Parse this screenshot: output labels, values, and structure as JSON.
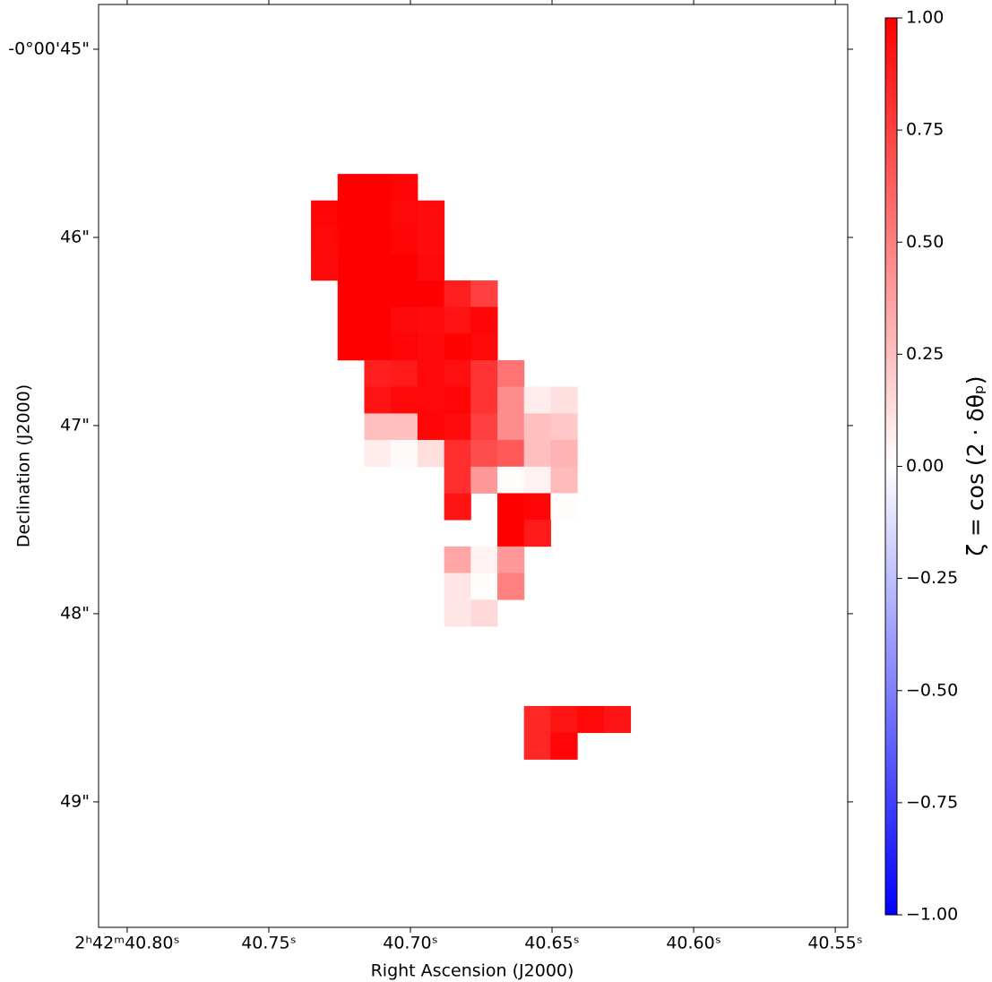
{
  "chart_data": {
    "type": "heatmap",
    "xlabel": "Right Ascension (J2000)",
    "ylabel": "Declination (J2000)",
    "colorbar_label": "ζ = cos (2 · δθₚ)",
    "colormap": [
      "#0000ff",
      "#ffffff",
      "#ff0000"
    ],
    "clim": [
      -1,
      1
    ],
    "cticks": [
      {
        "value": -1,
        "label": "−1.00"
      },
      {
        "value": -0.75,
        "label": "−0.75"
      },
      {
        "value": -0.5,
        "label": "−0.50"
      },
      {
        "value": -0.25,
        "label": "−0.25"
      },
      {
        "value": 0,
        "label": "0.00"
      },
      {
        "value": 0.25,
        "label": "0.25"
      },
      {
        "value": 0.5,
        "label": "0.50"
      },
      {
        "value": 0.75,
        "label": "0.75"
      },
      {
        "value": 1,
        "label": "1.00"
      }
    ],
    "xlim": [
      40.8101,
      40.5456
    ],
    "ylim": [
      49.667,
      44.762
    ],
    "xticks": [
      {
        "value": 40.8,
        "label": "2ʰ42ᵐ40.80ˢ"
      },
      {
        "value": 40.75,
        "label": "40.75ˢ"
      },
      {
        "value": 40.7,
        "label": "40.70ˢ"
      },
      {
        "value": 40.65,
        "label": "40.65ˢ"
      },
      {
        "value": 40.6,
        "label": "40.60ˢ"
      },
      {
        "value": 40.55,
        "label": "40.55ˢ"
      }
    ],
    "yticks": [
      {
        "value": 45,
        "label": "-0°00'45\""
      },
      {
        "value": 46,
        "label": "46\""
      },
      {
        "value": 47,
        "label": "47\""
      },
      {
        "value": 48,
        "label": "48\""
      },
      {
        "value": 49,
        "label": "49\""
      }
    ],
    "x": [
      40.7304,
      40.721,
      40.7116,
      40.7022,
      40.6928,
      40.6834,
      40.674,
      40.6646,
      40.6552,
      40.6458,
      40.6364,
      40.627
    ],
    "y": [
      45.733,
      45.874,
      46.016,
      46.157,
      46.299,
      46.44,
      46.581,
      46.723,
      46.864,
      47.006,
      47.147,
      47.289,
      47.43,
      47.571,
      47.713,
      47.854,
      47.996,
      48.137,
      48.279,
      48.42,
      48.561,
      48.703
    ],
    "z": [
      [
        null,
        1,
        1,
        0.98,
        null,
        null,
        null,
        null,
        null,
        null,
        null,
        null
      ],
      [
        0.98,
        1,
        1,
        0.97,
        0.95,
        null,
        null,
        null,
        null,
        null,
        null,
        null
      ],
      [
        0.97,
        1,
        1,
        0.98,
        0.95,
        null,
        null,
        null,
        null,
        null,
        null,
        null
      ],
      [
        0.96,
        1,
        1,
        1,
        0.96,
        null,
        null,
        null,
        null,
        null,
        null,
        null
      ],
      [
        null,
        1,
        1,
        1,
        1,
        0.88,
        0.75,
        null,
        null,
        null,
        null,
        null
      ],
      [
        null,
        1,
        1,
        0.96,
        0.95,
        0.93,
        0.98,
        null,
        null,
        null,
        null,
        null
      ],
      [
        null,
        1,
        1,
        0.98,
        0.96,
        0.99,
        0.97,
        null,
        null,
        null,
        null,
        null
      ],
      [
        null,
        null,
        0.88,
        0.9,
        0.97,
        0.94,
        0.8,
        0.55,
        null,
        null,
        null,
        null
      ],
      [
        null,
        null,
        0.93,
        0.97,
        0.97,
        0.98,
        0.8,
        0.45,
        0.08,
        0.12,
        null,
        null
      ],
      [
        null,
        null,
        0.25,
        0.25,
        0.98,
        0.95,
        0.75,
        0.45,
        0.25,
        0.22,
        null,
        null
      ],
      [
        null,
        null,
        0.07,
        0.02,
        0.13,
        0.82,
        0.7,
        0.65,
        0.25,
        0.3,
        null,
        null
      ],
      [
        null,
        null,
        null,
        null,
        null,
        0.82,
        0.4,
        0.01,
        0.05,
        0.27,
        null,
        null
      ],
      [
        null,
        null,
        null,
        null,
        null,
        0.92,
        null,
        1,
        0.98,
        0.01,
        null,
        null
      ],
      [
        null,
        null,
        null,
        null,
        null,
        null,
        null,
        1,
        0.9,
        null,
        null,
        null
      ],
      [
        null,
        null,
        null,
        null,
        null,
        0.35,
        0.05,
        0.4,
        null,
        null,
        null,
        null
      ],
      [
        null,
        null,
        null,
        null,
        null,
        0.1,
        0.01,
        0.5,
        null,
        null,
        null,
        null
      ],
      [
        null,
        null,
        null,
        null,
        null,
        0.1,
        0.15,
        null,
        null,
        null,
        null,
        null
      ],
      [
        null,
        null,
        null,
        null,
        null,
        null,
        null,
        null,
        null,
        null,
        null,
        null
      ],
      [
        null,
        null,
        null,
        null,
        null,
        null,
        null,
        null,
        null,
        null,
        null,
        null
      ],
      [
        null,
        null,
        null,
        null,
        null,
        null,
        null,
        null,
        null,
        null,
        null,
        null
      ],
      [
        null,
        null,
        null,
        null,
        null,
        null,
        null,
        null,
        0.85,
        0.92,
        0.97,
        0.92
      ],
      [
        null,
        null,
        null,
        null,
        null,
        null,
        null,
        null,
        0.85,
        0.98,
        null,
        null
      ]
    ]
  }
}
